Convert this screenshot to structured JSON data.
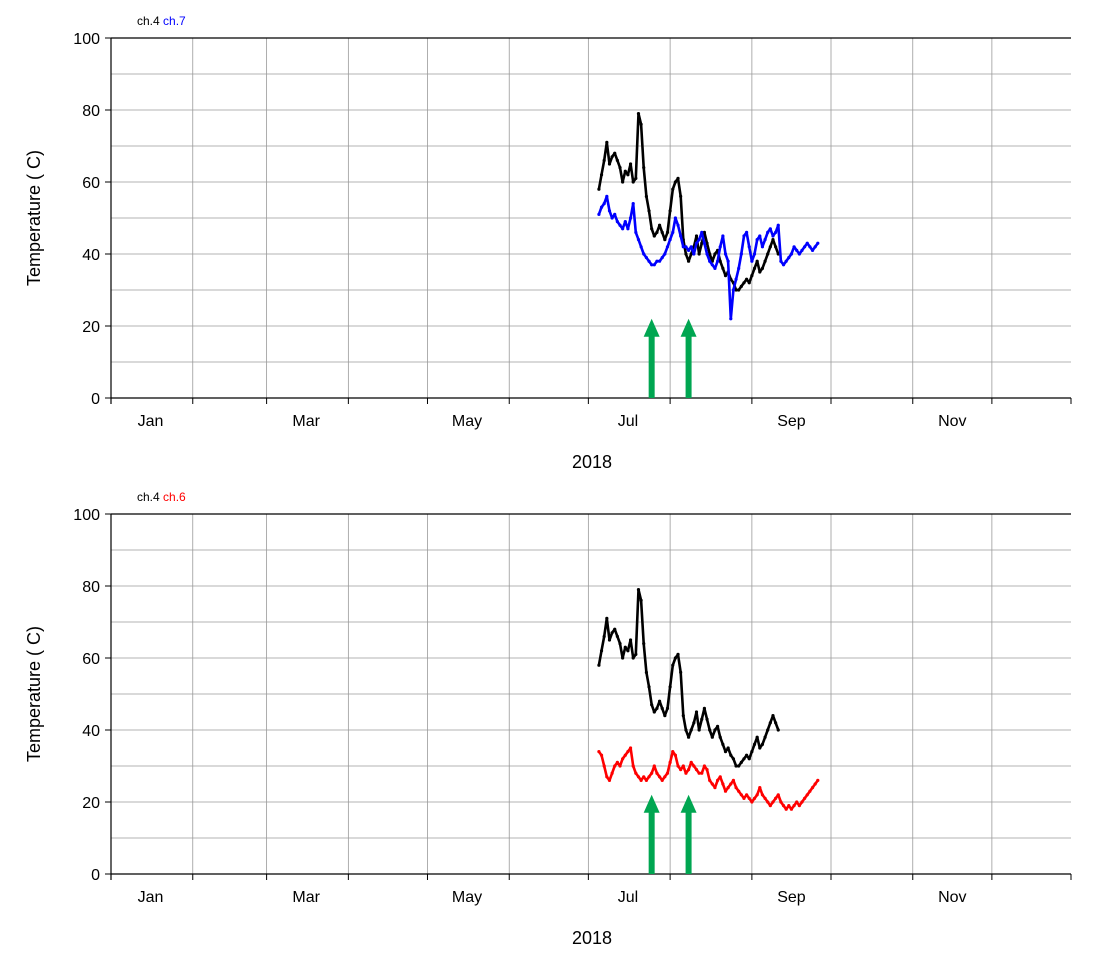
{
  "chart_data": [
    {
      "type": "scatter",
      "ylabel": "Temperature ( C)",
      "xlabel": "2018",
      "ylim": [
        0,
        100
      ],
      "yticks": [
        0,
        20,
        40,
        60,
        80,
        100
      ],
      "xlim": [
        "2018-01-01",
        "2018-12-31"
      ],
      "xticks": [
        {
          "label": "Jan",
          "date": "2018-01-16"
        },
        {
          "label": "Mar",
          "date": "2018-03-16"
        },
        {
          "label": "May",
          "date": "2018-05-16"
        },
        {
          "label": "Jul",
          "date": "2018-07-16"
        },
        {
          "label": "Sep",
          "date": "2018-09-16"
        },
        {
          "label": "Nov",
          "date": "2018-11-16"
        }
      ],
      "grid": true,
      "legend_position": "top-left",
      "series": [
        {
          "name": "ch.4",
          "color": "#000000",
          "x": [
            "2018-07-05",
            "2018-07-06",
            "2018-07-07",
            "2018-07-08",
            "2018-07-09",
            "2018-07-10",
            "2018-07-11",
            "2018-07-12",
            "2018-07-13",
            "2018-07-14",
            "2018-07-15",
            "2018-07-16",
            "2018-07-17",
            "2018-07-18",
            "2018-07-19",
            "2018-07-20",
            "2018-07-21",
            "2018-07-22",
            "2018-07-23",
            "2018-07-24",
            "2018-07-25",
            "2018-07-26",
            "2018-07-27",
            "2018-07-28",
            "2018-07-29",
            "2018-07-30",
            "2018-07-31",
            "2018-08-01",
            "2018-08-02",
            "2018-08-03",
            "2018-08-04",
            "2018-08-05",
            "2018-08-06",
            "2018-08-07",
            "2018-08-08",
            "2018-08-09",
            "2018-08-10",
            "2018-08-11",
            "2018-08-12",
            "2018-08-13",
            "2018-08-14",
            "2018-08-15",
            "2018-08-16",
            "2018-08-17",
            "2018-08-18",
            "2018-08-19",
            "2018-08-20",
            "2018-08-21",
            "2018-08-22",
            "2018-08-23",
            "2018-08-24",
            "2018-08-25",
            "2018-08-26",
            "2018-08-27",
            "2018-08-28",
            "2018-08-29",
            "2018-08-30",
            "2018-08-31",
            "2018-09-01",
            "2018-09-02",
            "2018-09-03",
            "2018-09-04",
            "2018-09-05",
            "2018-09-06",
            "2018-09-07",
            "2018-09-08",
            "2018-09-09",
            "2018-09-10",
            "2018-09-11"
          ],
          "y": [
            58,
            62,
            66,
            71,
            65,
            67,
            68,
            66,
            64,
            60,
            63,
            62,
            65,
            60,
            61,
            79,
            76,
            64,
            56,
            52,
            47,
            45,
            46,
            48,
            46,
            44,
            46,
            52,
            58,
            60,
            61,
            56,
            44,
            40,
            38,
            40,
            42,
            45,
            40,
            43,
            46,
            43,
            40,
            38,
            40,
            41,
            38,
            36,
            34,
            35,
            33,
            32,
            30,
            30,
            31,
            32,
            33,
            32,
            34,
            36,
            38,
            35,
            36,
            38,
            40,
            42,
            44,
            42,
            40
          ]
        },
        {
          "name": "ch.7",
          "color": "#0000ff",
          "x": [
            "2018-07-05",
            "2018-07-06",
            "2018-07-07",
            "2018-07-08",
            "2018-07-09",
            "2018-07-10",
            "2018-07-11",
            "2018-07-12",
            "2018-07-13",
            "2018-07-14",
            "2018-07-15",
            "2018-07-16",
            "2018-07-17",
            "2018-07-18",
            "2018-07-19",
            "2018-07-20",
            "2018-07-21",
            "2018-07-22",
            "2018-07-23",
            "2018-07-24",
            "2018-07-25",
            "2018-07-26",
            "2018-07-27",
            "2018-07-28",
            "2018-07-29",
            "2018-07-30",
            "2018-07-31",
            "2018-08-01",
            "2018-08-02",
            "2018-08-03",
            "2018-08-04",
            "2018-08-05",
            "2018-08-06",
            "2018-08-07",
            "2018-08-08",
            "2018-08-09",
            "2018-08-10",
            "2018-08-11",
            "2018-08-12",
            "2018-08-13",
            "2018-08-14",
            "2018-08-15",
            "2018-08-16",
            "2018-08-17",
            "2018-08-18",
            "2018-08-19",
            "2018-08-20",
            "2018-08-21",
            "2018-08-22",
            "2018-08-23",
            "2018-08-24",
            "2018-08-25",
            "2018-08-26",
            "2018-08-27",
            "2018-08-28",
            "2018-08-29",
            "2018-08-30",
            "2018-08-31",
            "2018-09-01",
            "2018-09-02",
            "2018-09-03",
            "2018-09-04",
            "2018-09-05",
            "2018-09-06",
            "2018-09-07",
            "2018-09-08",
            "2018-09-09",
            "2018-09-10",
            "2018-09-11",
            "2018-09-12",
            "2018-09-13",
            "2018-09-14",
            "2018-09-15",
            "2018-09-16",
            "2018-09-17",
            "2018-09-18",
            "2018-09-19",
            "2018-09-20",
            "2018-09-21",
            "2018-09-22",
            "2018-09-23",
            "2018-09-24",
            "2018-09-25",
            "2018-09-26"
          ],
          "y": [
            51,
            53,
            54,
            56,
            52,
            50,
            51,
            49,
            48,
            47,
            49,
            47,
            50,
            54,
            46,
            44,
            42,
            40,
            39,
            38,
            37,
            37,
            38,
            38,
            39,
            40,
            42,
            44,
            46,
            50,
            48,
            45,
            42,
            42,
            41,
            42,
            40,
            43,
            44,
            46,
            43,
            40,
            38,
            37,
            36,
            38,
            42,
            45,
            40,
            38,
            22,
            30,
            33,
            36,
            40,
            45,
            46,
            42,
            38,
            40,
            44,
            45,
            42,
            44,
            46,
            47,
            45,
            46,
            48,
            38,
            37,
            38,
            39,
            40,
            42,
            41,
            40,
            41,
            42,
            43,
            42,
            41,
            42,
            43
          ]
        }
      ],
      "annotations": [
        {
          "type": "arrow",
          "color": "#00a651",
          "x": "2018-07-25",
          "y_from": 0,
          "y_to": 22
        },
        {
          "type": "arrow",
          "color": "#00a651",
          "x": "2018-08-08",
          "y_from": 0,
          "y_to": 22
        }
      ]
    },
    {
      "type": "scatter",
      "ylabel": "Temperature ( C)",
      "xlabel": "2018",
      "ylim": [
        0,
        100
      ],
      "yticks": [
        0,
        20,
        40,
        60,
        80,
        100
      ],
      "xlim": [
        "2018-01-01",
        "2018-12-31"
      ],
      "xticks": [
        {
          "label": "Jan",
          "date": "2018-01-16"
        },
        {
          "label": "Mar",
          "date": "2018-03-16"
        },
        {
          "label": "May",
          "date": "2018-05-16"
        },
        {
          "label": "Jul",
          "date": "2018-07-16"
        },
        {
          "label": "Sep",
          "date": "2018-09-16"
        },
        {
          "label": "Nov",
          "date": "2018-11-16"
        }
      ],
      "grid": true,
      "legend_position": "top-left",
      "series": [
        {
          "name": "ch.4",
          "color": "#000000",
          "x": [
            "2018-07-05",
            "2018-07-06",
            "2018-07-07",
            "2018-07-08",
            "2018-07-09",
            "2018-07-10",
            "2018-07-11",
            "2018-07-12",
            "2018-07-13",
            "2018-07-14",
            "2018-07-15",
            "2018-07-16",
            "2018-07-17",
            "2018-07-18",
            "2018-07-19",
            "2018-07-20",
            "2018-07-21",
            "2018-07-22",
            "2018-07-23",
            "2018-07-24",
            "2018-07-25",
            "2018-07-26",
            "2018-07-27",
            "2018-07-28",
            "2018-07-29",
            "2018-07-30",
            "2018-07-31",
            "2018-08-01",
            "2018-08-02",
            "2018-08-03",
            "2018-08-04",
            "2018-08-05",
            "2018-08-06",
            "2018-08-07",
            "2018-08-08",
            "2018-08-09",
            "2018-08-10",
            "2018-08-11",
            "2018-08-12",
            "2018-08-13",
            "2018-08-14",
            "2018-08-15",
            "2018-08-16",
            "2018-08-17",
            "2018-08-18",
            "2018-08-19",
            "2018-08-20",
            "2018-08-21",
            "2018-08-22",
            "2018-08-23",
            "2018-08-24",
            "2018-08-25",
            "2018-08-26",
            "2018-08-27",
            "2018-08-28",
            "2018-08-29",
            "2018-08-30",
            "2018-08-31",
            "2018-09-01",
            "2018-09-02",
            "2018-09-03",
            "2018-09-04",
            "2018-09-05",
            "2018-09-06",
            "2018-09-07",
            "2018-09-08",
            "2018-09-09",
            "2018-09-10",
            "2018-09-11"
          ],
          "y": [
            58,
            62,
            66,
            71,
            65,
            67,
            68,
            66,
            64,
            60,
            63,
            62,
            65,
            60,
            61,
            79,
            76,
            64,
            56,
            52,
            47,
            45,
            46,
            48,
            46,
            44,
            46,
            52,
            58,
            60,
            61,
            56,
            44,
            40,
            38,
            40,
            42,
            45,
            40,
            43,
            46,
            43,
            40,
            38,
            40,
            41,
            38,
            36,
            34,
            35,
            33,
            32,
            30,
            30,
            31,
            32,
            33,
            32,
            34,
            36,
            38,
            35,
            36,
            38,
            40,
            42,
            44,
            42,
            40
          ]
        },
        {
          "name": "ch.6",
          "color": "#ff0000",
          "x": [
            "2018-07-05",
            "2018-07-06",
            "2018-07-07",
            "2018-07-08",
            "2018-07-09",
            "2018-07-10",
            "2018-07-11",
            "2018-07-12",
            "2018-07-13",
            "2018-07-14",
            "2018-07-15",
            "2018-07-16",
            "2018-07-17",
            "2018-07-18",
            "2018-07-19",
            "2018-07-20",
            "2018-07-21",
            "2018-07-22",
            "2018-07-23",
            "2018-07-24",
            "2018-07-25",
            "2018-07-26",
            "2018-07-27",
            "2018-07-28",
            "2018-07-29",
            "2018-07-30",
            "2018-07-31",
            "2018-08-01",
            "2018-08-02",
            "2018-08-03",
            "2018-08-04",
            "2018-08-05",
            "2018-08-06",
            "2018-08-07",
            "2018-08-08",
            "2018-08-09",
            "2018-08-10",
            "2018-08-11",
            "2018-08-12",
            "2018-08-13",
            "2018-08-14",
            "2018-08-15",
            "2018-08-16",
            "2018-08-17",
            "2018-08-18",
            "2018-08-19",
            "2018-08-20",
            "2018-08-21",
            "2018-08-22",
            "2018-08-23",
            "2018-08-24",
            "2018-08-25",
            "2018-08-26",
            "2018-08-27",
            "2018-08-28",
            "2018-08-29",
            "2018-08-30",
            "2018-08-31",
            "2018-09-01",
            "2018-09-02",
            "2018-09-03",
            "2018-09-04",
            "2018-09-05",
            "2018-09-06",
            "2018-09-07",
            "2018-09-08",
            "2018-09-09",
            "2018-09-10",
            "2018-09-11",
            "2018-09-12",
            "2018-09-13",
            "2018-09-14",
            "2018-09-15",
            "2018-09-16",
            "2018-09-17",
            "2018-09-18",
            "2018-09-19",
            "2018-09-20",
            "2018-09-21",
            "2018-09-22",
            "2018-09-23",
            "2018-09-24",
            "2018-09-25",
            "2018-09-26"
          ],
          "y": [
            34,
            33,
            30,
            27,
            26,
            28,
            30,
            31,
            30,
            32,
            33,
            34,
            35,
            30,
            28,
            27,
            26,
            27,
            26,
            27,
            28,
            30,
            28,
            27,
            26,
            27,
            28,
            31,
            34,
            33,
            30,
            29,
            30,
            28,
            29,
            31,
            30,
            29,
            28,
            28,
            30,
            29,
            26,
            25,
            24,
            26,
            27,
            25,
            23,
            24,
            25,
            26,
            24,
            23,
            22,
            21,
            22,
            21,
            20,
            21,
            22,
            24,
            22,
            21,
            20,
            19,
            20,
            21,
            22,
            20,
            19,
            18,
            19,
            18,
            19,
            20,
            19,
            20,
            21,
            22,
            23,
            24,
            25,
            26
          ]
        }
      ],
      "annotations": [
        {
          "type": "arrow",
          "color": "#00a651",
          "x": "2018-07-25",
          "y_from": 0,
          "y_to": 22
        },
        {
          "type": "arrow",
          "color": "#00a651",
          "x": "2018-08-08",
          "y_from": 0,
          "y_to": 22
        }
      ]
    }
  ]
}
